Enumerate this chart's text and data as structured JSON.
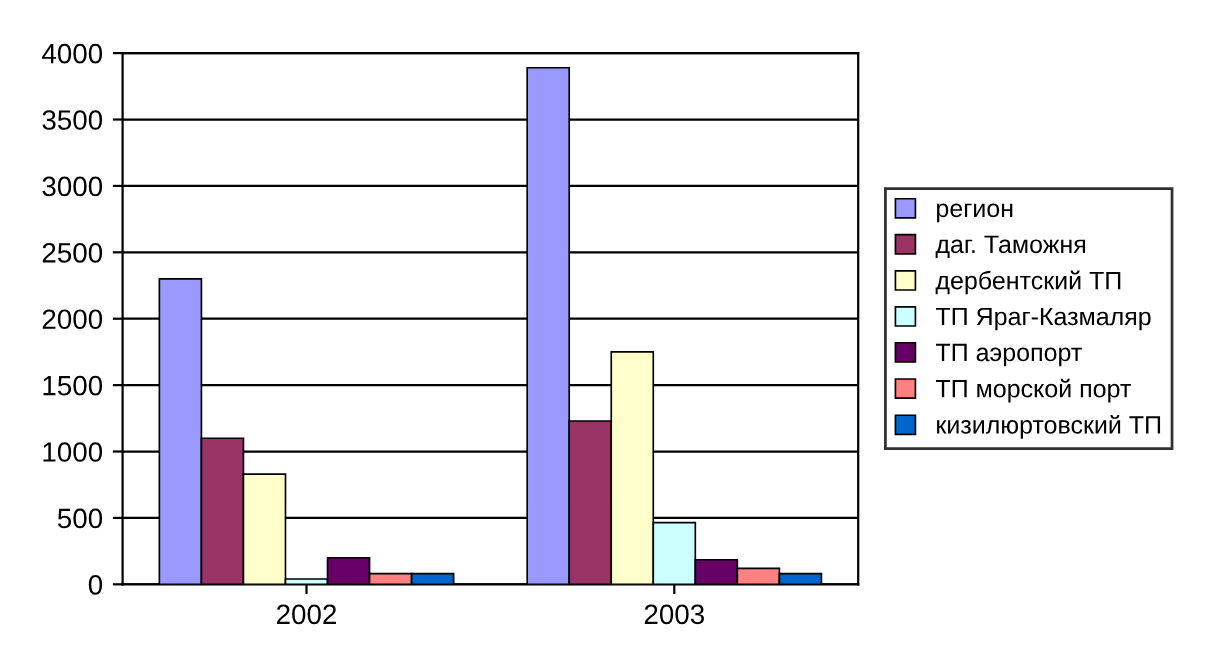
{
  "chart_data": {
    "type": "bar",
    "categories": [
      "2002",
      "2003"
    ],
    "series": [
      {
        "name": "регион",
        "color": "#9999ff",
        "values": [
          2300,
          3890
        ]
      },
      {
        "name": "даг. Таможня",
        "color": "#993366",
        "values": [
          1100,
          1230
        ]
      },
      {
        "name": "дербентский ТП",
        "color": "#ffffcc",
        "values": [
          830,
          1750
        ]
      },
      {
        "name": "ТП Яраг-Казмаляр",
        "color": "#ccffff",
        "values": [
          40,
          465
        ]
      },
      {
        "name": "ТП аэропорт",
        "color": "#660066",
        "values": [
          200,
          185
        ]
      },
      {
        "name": "ТП морской порт",
        "color": "#ff8080",
        "values": [
          80,
          120
        ]
      },
      {
        "name": "кизилюртовский ТП",
        "color": "#0066cc",
        "values": [
          80,
          80
        ]
      }
    ],
    "ylim": [
      0,
      4000
    ],
    "yticks": [
      0,
      500,
      1000,
      1500,
      2000,
      2500,
      3000,
      3500,
      4000
    ],
    "grid": "y",
    "legend": "right"
  }
}
